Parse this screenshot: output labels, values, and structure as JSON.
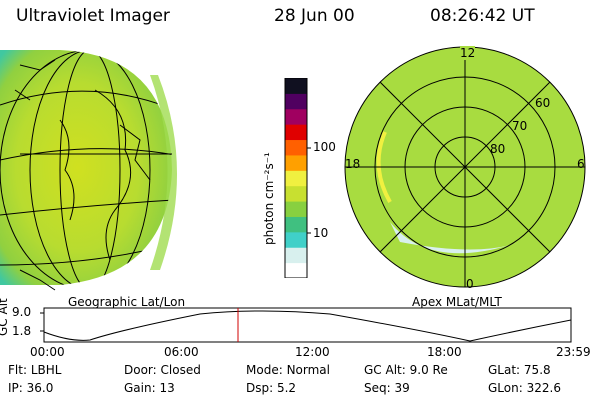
{
  "header": {
    "instrument": "Ultraviolet Imager",
    "date": "28 Jun 00",
    "time": "08:26:42 UT"
  },
  "colorbar": {
    "units_label": "photon cm⁻²s⁻¹",
    "ticks": [
      "100",
      "10"
    ],
    "scale": "log",
    "colors": [
      "#ffffff",
      "#d8f0ee",
      "#40d0c8",
      "#40c080",
      "#88d040",
      "#c8e030",
      "#f0f040",
      "#ffa000",
      "#ff6000",
      "#e00000",
      "#a00060",
      "#500060",
      "#101020"
    ]
  },
  "left_panel": {
    "label": "Geographic Lat/Lon"
  },
  "right_panel": {
    "label": "Apex MLat/MLT",
    "mlt_labels": [
      "12",
      "18",
      "6",
      "0"
    ],
    "mlat_labels": [
      "60",
      "70",
      "80"
    ]
  },
  "altitude_plot": {
    "ylabel": "GC Alt",
    "yticks": [
      "9.0",
      "1.8"
    ],
    "xticks": [
      "00:00",
      "06:00",
      "12:00",
      "18:00",
      "23:59"
    ],
    "cursor_time": "08:26:42"
  },
  "footer": {
    "row1": [
      {
        "label": "Flt:",
        "value": "LBHL"
      },
      {
        "label": "Door:",
        "value": "Closed"
      },
      {
        "label": "Mode:",
        "value": "Normal"
      },
      {
        "label": "GC Alt:",
        "value": "9.0 Re"
      },
      {
        "label": "GLat:",
        "value": "75.8"
      }
    ],
    "row2": [
      {
        "label": "IP:",
        "value": "36.0"
      },
      {
        "label": "Gain:",
        "value": "13"
      },
      {
        "label": "Dsp:",
        "value": "5.2"
      },
      {
        "label": "Seq:",
        "value": "39"
      },
      {
        "label": "GLon:",
        "value": "322.6"
      }
    ]
  }
}
